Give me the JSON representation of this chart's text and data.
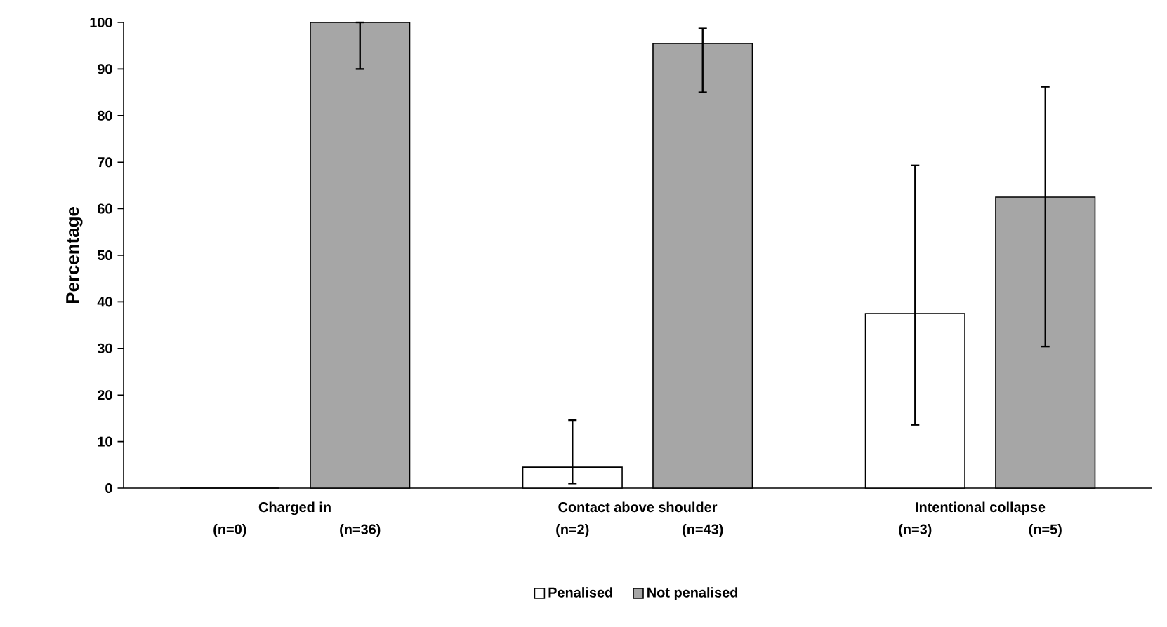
{
  "chart_data": {
    "type": "bar",
    "ylabel": "Percentage",
    "categories": [
      "Charged in",
      "Contact above shoulder",
      "Intentional collapse"
    ],
    "series": [
      {
        "name": "Penalised",
        "color": "#ffffff",
        "values": [
          0,
          4.5,
          37.5
        ],
        "errors": [
          null,
          [
            1,
            14.6
          ],
          [
            13.6,
            69.3
          ]
        ]
      },
      {
        "name": "Not penalised",
        "color": "#a6a6a6",
        "values": [
          100,
          95.5,
          62.5
        ],
        "errors": [
          [
            90,
            100
          ],
          [
            85,
            98.7
          ],
          [
            30.4,
            86.2
          ]
        ]
      }
    ],
    "annotations": [
      "(n=0)",
      "(n=36)",
      "(n=2)",
      "(n=43)",
      "(n=3)",
      "(n=5)"
    ],
    "ylim": [
      0,
      100
    ],
    "yticks": [
      0,
      10,
      20,
      30,
      40,
      50,
      60,
      70,
      80,
      90,
      100
    ],
    "legend": "bottom",
    "grid": false
  }
}
